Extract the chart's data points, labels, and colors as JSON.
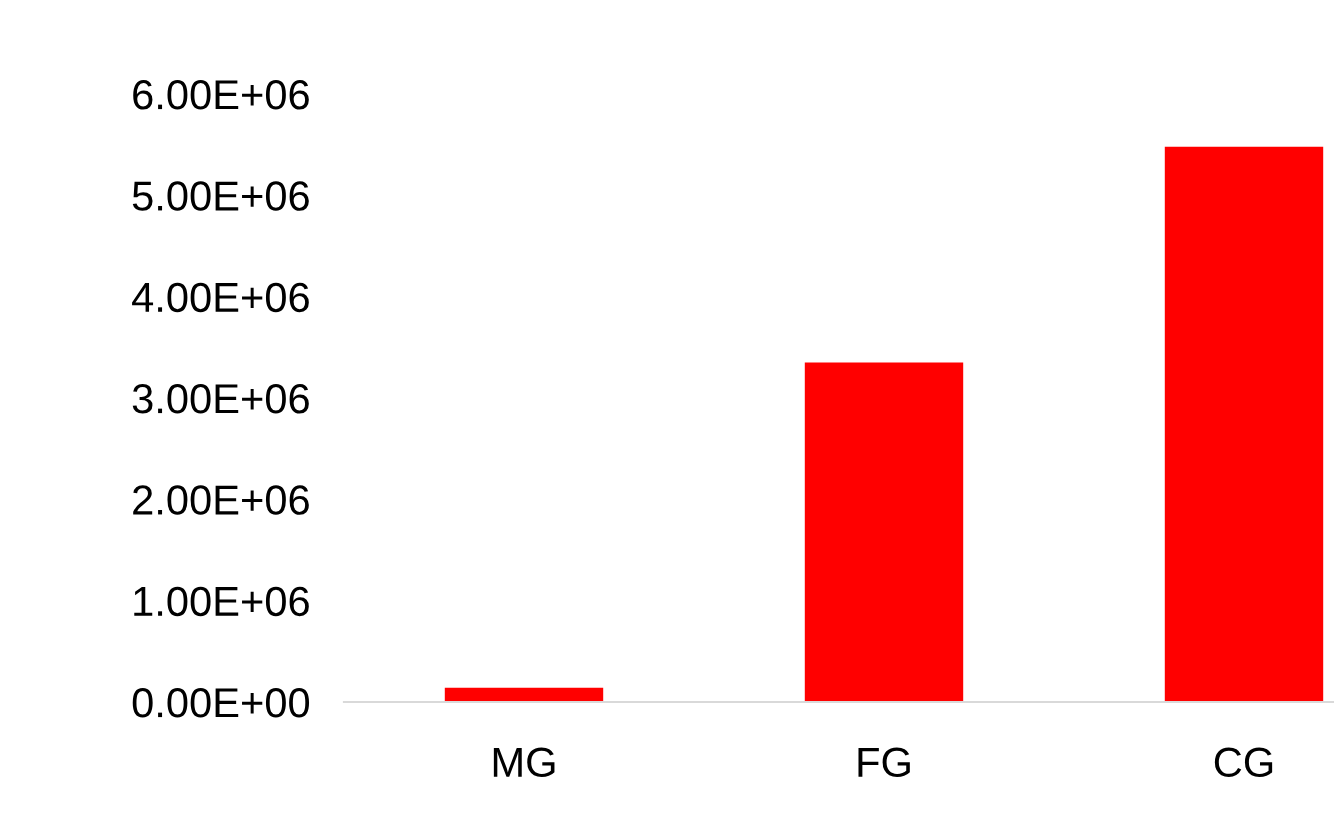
{
  "chart_data": {
    "type": "bar",
    "categories": [
      "MG",
      "FG",
      "CG"
    ],
    "values": [
      140000,
      3350000,
      5480000
    ],
    "color": "#ff0000",
    "ylim": [
      0,
      6000000
    ],
    "yticks": [
      {
        "value": 0,
        "label": "0.00E+00"
      },
      {
        "value": 1000000,
        "label": "1.00E+06"
      },
      {
        "value": 2000000,
        "label": "2.00E+06"
      },
      {
        "value": 3000000,
        "label": "3.00E+06"
      },
      {
        "value": 4000000,
        "label": "4.00E+06"
      },
      {
        "value": 5000000,
        "label": "5.00E+06"
      },
      {
        "value": 6000000,
        "label": "6.00E+06"
      }
    ],
    "grid": false,
    "legend": false
  }
}
